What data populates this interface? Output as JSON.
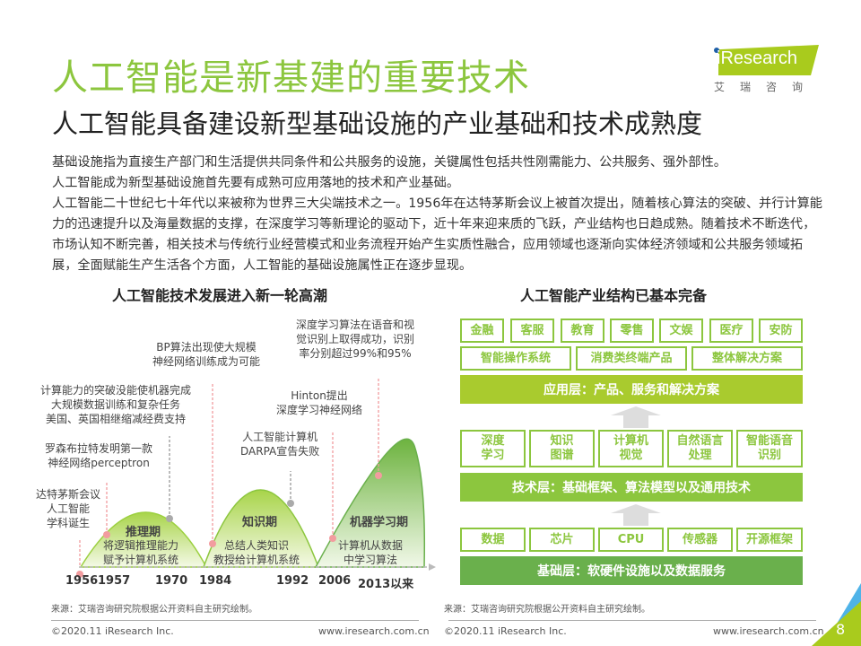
{
  "title": "人工智能是新基建的重要技术",
  "subtitle": "人工智能具备建设新型基础设施的产业基础和技术成熟度",
  "logo": {
    "text": "iResearch",
    "cn": "艾瑞咨询"
  },
  "body": [
    "基础设施指为直接生产部门和生活提供共同条件和公共服务的设施，关键属性包括共性刚需能力、公共服务、强外部性。",
    "人工智能成为新型基础设施首先要有成熟可应用落地的技术和产业基础。",
    "人工智能二十世纪七十年代以来被称为世界三大尖端技术之一。1956年在达特茅斯会议上被首次提出，随着核心算法的突破、并行计算能力的迅速提升以及海量数据的支撑，在深度学习等新理论的驱动下，近十年来迎来质的飞跃，产业结构也日趋成熟。随着技术不断迭代，市场认知不断完善，相关技术与传统行业经营模式和业务流程开始产生实质性融合，应用领域也逐渐向实体经济领域和公共服务领域拓展，全面赋能生产生活各个方面，人工智能的基础设施属性正在逐步显现。"
  ],
  "left": {
    "title": "人工智能技术发展进入新一轮高潮",
    "annotations": [
      "达特茅斯会议\n人工智能\n学科诞生",
      "罗森布拉特发明第一款\n神经网络perceptron",
      "计算能力的突破没能使机器完成\n大规模数据训练和复杂任务\n美国、英国相继缩减经费支持",
      "BP算法出现使大规模\n神经网络训练成为可能",
      "人工智能计算机\nDARPA宣告失败",
      "Hinton提出\n深度学习神经网络",
      "深度学习算法在语音和视\n觉识别上取得成功，识别\n率分别超过99%和95%"
    ],
    "periods": [
      {
        "name": "推理期",
        "desc": "将逻辑推理能力\n赋予计算机系统"
      },
      {
        "name": "知识期",
        "desc": "总结人类知识\n教授给计算机系统"
      },
      {
        "name": "机器学习期",
        "desc": "计算机从数据\n中学习算法"
      }
    ],
    "years": [
      "1956",
      "1957",
      "1970",
      "1984",
      "1992",
      "2006",
      "2013以来"
    ],
    "source": "来源：艾瑞咨询研究院根据公开资料自主研究绘制。"
  },
  "right": {
    "title": "人工智能产业结构已基本完备",
    "apps": [
      "金融",
      "客服",
      "教育",
      "零售",
      "文娱",
      "医疗",
      "安防"
    ],
    "app_products": [
      "智能操作系统",
      "消费类终端产品",
      "整体解决方案"
    ],
    "app_layer": "应用层：产品、服务和解决方案",
    "techs": [
      "深度\n学习",
      "知识\n图谱",
      "计算机\n视觉",
      "自然语言\n处理",
      "智能语音\n识别"
    ],
    "tech_layer": "技术层：基础框架、算法模型以及通用技术",
    "bases": [
      "数据",
      "芯片",
      "CPU",
      "传感器",
      "开源框架"
    ],
    "base_layer": "基础层：软硬件设施以及数据服务",
    "source": "来源：艾瑞咨询研究院根据公开资料自主研究绘制。"
  },
  "footer": {
    "copyright": "©2020.11 iResearch Inc.",
    "url": "www.iresearch.com.cn",
    "page": "8"
  },
  "colors": {
    "green": "#8cc63e",
    "app": "#a9cb2e",
    "tech": "#8cc63e",
    "base": "#6ab04c",
    "pink": "#f29c9f"
  }
}
